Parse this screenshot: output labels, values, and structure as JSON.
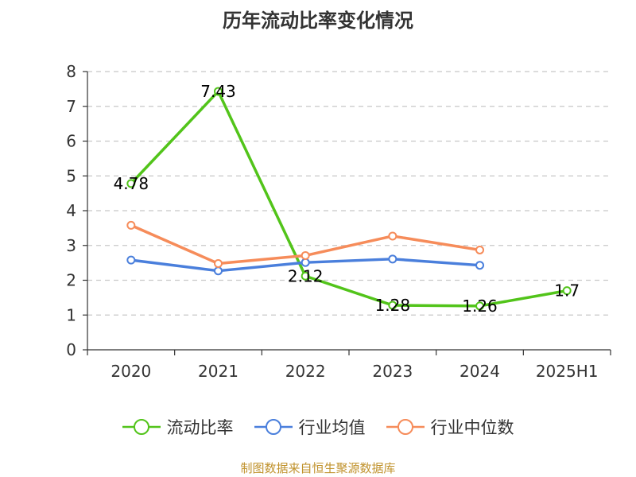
{
  "title": "历年流动比率变化情况",
  "source": "制图数据来自恒生聚源数据库",
  "chart_data": {
    "type": "line",
    "categories": [
      "2020",
      "2021",
      "2022",
      "2023",
      "2024",
      "2025H1"
    ],
    "ylim": [
      0,
      8
    ],
    "yticks": [
      "0",
      "1",
      "2",
      "3",
      "4",
      "5",
      "6",
      "7",
      "8"
    ],
    "grid": true,
    "legend_position": "bottom",
    "series": [
      {
        "name": "流动比率",
        "color": "#52c41a",
        "values": [
          4.78,
          7.43,
          2.12,
          1.28,
          1.26,
          1.7
        ],
        "labels": [
          "4.78",
          "7.43",
          "2.12",
          "1.28",
          "1.26",
          "1.7"
        ]
      },
      {
        "name": "行业均值",
        "color": "#4a7fdc",
        "values": [
          2.58,
          2.27,
          2.51,
          2.61,
          2.43,
          null
        ]
      },
      {
        "name": "行业中位数",
        "color": "#f68c5a",
        "values": [
          3.58,
          2.48,
          2.71,
          3.27,
          2.87,
          null
        ]
      }
    ]
  }
}
